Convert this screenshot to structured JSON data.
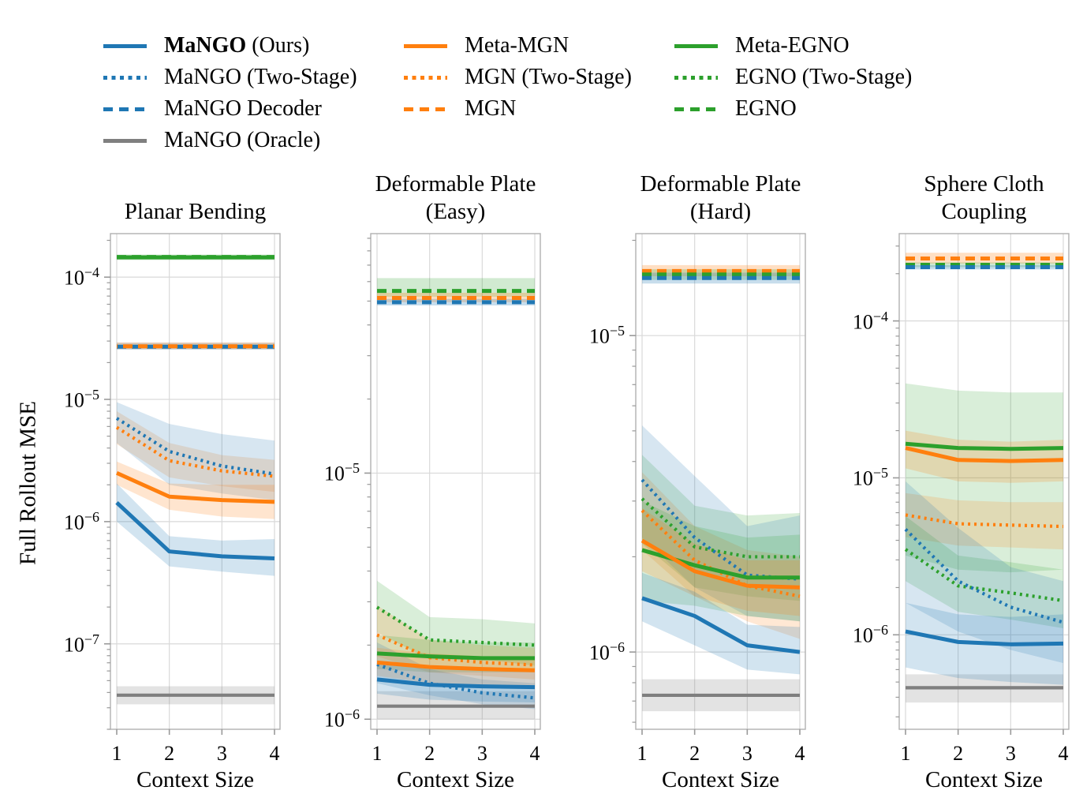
{
  "figure": {
    "ylabel": "Full Rollout MSE",
    "xlabel": "Context Size",
    "x_ticks": [
      "1",
      "2",
      "3",
      "4"
    ],
    "background": "#ffffff",
    "grid_color": "#d9d9d9",
    "spine_color": "#b0b0b0",
    "tick_color": "#9a9a9a"
  },
  "styles": {
    "mango": {
      "color": "#1f77b4",
      "dash": "solid",
      "width": 5,
      "band_opacity": 0.2
    },
    "mango_two_stage": {
      "color": "#1f77b4",
      "dash": "dotted",
      "width": 4.2,
      "band_opacity": 0.18
    },
    "mango_decoder": {
      "color": "#1f77b4",
      "dash": "dashed",
      "width": 5,
      "band_opacity": 0.25
    },
    "mango_oracle": {
      "color": "#7f7f7f",
      "dash": "solid",
      "width": 4.2,
      "band_opacity": 0.22
    },
    "meta_mgn": {
      "color": "#ff7f0e",
      "dash": "solid",
      "width": 5,
      "band_opacity": 0.2
    },
    "mgn_two_stage": {
      "color": "#ff7f0e",
      "dash": "dotted",
      "width": 4.2,
      "band_opacity": 0.18
    },
    "mgn": {
      "color": "#ff7f0e",
      "dash": "dashed",
      "width": 5,
      "band_opacity": 0.25
    },
    "meta_egno": {
      "color": "#2ca02c",
      "dash": "solid",
      "width": 5,
      "band_opacity": 0.18
    },
    "egno_two_stage": {
      "color": "#2ca02c",
      "dash": "dotted",
      "width": 4.2,
      "band_opacity": 0.18
    },
    "egno": {
      "color": "#2ca02c",
      "dash": "dashed",
      "width": 5,
      "band_opacity": 0.22
    }
  },
  "legend": {
    "columns": [
      {
        "x": 131,
        "items": [
          {
            "key": "mango",
            "bold": "MaNGO",
            "label": " (Ours)"
          },
          {
            "key": "mango_two_stage",
            "bold": "",
            "label": "MaNGO (Two-Stage)"
          },
          {
            "key": "mango_decoder",
            "bold": "",
            "label": "MaNGO Decoder"
          },
          {
            "key": "mango_oracle",
            "bold": "",
            "label": "MaNGO (Oracle)"
          }
        ]
      },
      {
        "x": 512,
        "items": [
          {
            "key": "meta_mgn",
            "bold": "",
            "label": "Meta-MGN"
          },
          {
            "key": "mgn_two_stage",
            "bold": "",
            "label": "MGN (Two-Stage)"
          },
          {
            "key": "mgn",
            "bold": "",
            "label": "MGN"
          }
        ]
      },
      {
        "x": 855,
        "items": [
          {
            "key": "meta_egno",
            "bold": "",
            "label": "Meta-EGNO"
          },
          {
            "key": "egno_two_stage",
            "bold": "",
            "label": "EGNO (Two-Stage)"
          },
          {
            "key": "egno",
            "bold": "",
            "label": "EGNO"
          }
        ]
      }
    ]
  },
  "chart_data": [
    {
      "type": "line",
      "title": "Planar Bending",
      "x": [
        1,
        2,
        3,
        4
      ],
      "ylim": [
        2e-08,
        0.000227
      ],
      "yticks": [
        -4,
        -5,
        -6,
        -7
      ],
      "series": [
        {
          "key": "mango_oracle",
          "values": [
            3.8e-08,
            3.8e-08,
            3.8e-08,
            3.8e-08
          ],
          "lo": [
            3.2e-08,
            3.2e-08,
            3.2e-08,
            3.2e-08
          ],
          "hi": [
            4.5e-08,
            4.5e-08,
            4.5e-08,
            4.5e-08
          ]
        },
        {
          "key": "meta_egno",
          "values": [
            0.000145,
            0.000145,
            0.000145,
            0.000145
          ],
          "lo": [
            0.000138,
            0.000138,
            0.000138,
            0.000138
          ],
          "hi": [
            0.000153,
            0.000153,
            0.000153,
            0.000153
          ]
        },
        {
          "key": "egno",
          "values": [
            0.000146,
            0.000146,
            0.000146,
            0.000146
          ],
          "lo": [
            0.00014,
            0.00014,
            0.00014,
            0.00014
          ],
          "hi": [
            0.000152,
            0.000152,
            0.000152,
            0.000152
          ]
        },
        {
          "key": "mango_decoder",
          "values": [
            2.7e-05,
            2.7e-05,
            2.7e-05,
            2.7e-05
          ],
          "lo": [
            2.55e-05,
            2.55e-05,
            2.55e-05,
            2.55e-05
          ],
          "hi": [
            2.9e-05,
            2.9e-05,
            2.9e-05,
            2.9e-05
          ]
        },
        {
          "key": "mgn",
          "values": [
            2.72e-05,
            2.72e-05,
            2.72e-05,
            2.72e-05
          ],
          "dashoffset": 11,
          "lo": [
            2.58e-05,
            2.58e-05,
            2.58e-05,
            2.58e-05
          ],
          "hi": [
            2.92e-05,
            2.92e-05,
            2.92e-05,
            2.92e-05
          ]
        },
        {
          "key": "mgn_two_stage",
          "values": [
            5.9e-06,
            3.15e-06,
            2.6e-06,
            2.35e-06
          ],
          "lo": [
            4.3e-06,
            2.3e-06,
            1.95e-06,
            1.75e-06
          ],
          "hi": [
            8e-06,
            4.4e-06,
            3.5e-06,
            3.2e-06
          ]
        },
        {
          "key": "mango_two_stage",
          "values": [
            7e-06,
            3.75e-06,
            2.85e-06,
            2.45e-06
          ],
          "lo": [
            4.4e-06,
            2e-06,
            1.7e-06,
            1.5e-06
          ],
          "hi": [
            9.5e-06,
            6.3e-06,
            5.2e-06,
            4.6e-06
          ]
        },
        {
          "key": "meta_mgn",
          "values": [
            2.5e-06,
            1.6e-06,
            1.5e-06,
            1.45e-06
          ],
          "lo": [
            2e-06,
            1.25e-06,
            1.1e-06,
            1.05e-06
          ],
          "hi": [
            3.1e-06,
            2.05e-06,
            2e-06,
            2e-06
          ]
        },
        {
          "key": "mango",
          "values": [
            1.43e-06,
            5.7e-07,
            5.2e-07,
            5e-07
          ],
          "lo": [
            1e-06,
            4.3e-07,
            3.9e-07,
            3.6e-07
          ],
          "hi": [
            2.05e-06,
            7.6e-07,
            7e-07,
            7.2e-07
          ]
        }
      ]
    },
    {
      "type": "line",
      "title": "Deformable Plate\n(Easy)",
      "x": [
        1,
        2,
        3,
        4
      ],
      "ylim": [
        9.1e-07,
        9.4e-05
      ],
      "yticks": [
        -5,
        -6
      ],
      "series": [
        {
          "key": "mango_oracle",
          "values": [
            1.13e-06,
            1.13e-06,
            1.13e-06,
            1.13e-06
          ],
          "lo": [
            1e-06,
            1e-06,
            1e-06,
            1e-06
          ],
          "hi": [
            1.3e-06,
            1.3e-06,
            1.3e-06,
            1.3e-06
          ]
        },
        {
          "key": "egno",
          "values": [
            5.5e-05,
            5.5e-05,
            5.5e-05,
            5.5e-05
          ],
          "lo": [
            5.2e-05,
            5.2e-05,
            5.2e-05,
            5.2e-05
          ],
          "hi": [
            6.2e-05,
            6.2e-05,
            6.2e-05,
            6.2e-05
          ]
        },
        {
          "key": "mgn",
          "values": [
            5.15e-05,
            5.15e-05,
            5.15e-05,
            5.15e-05
          ],
          "lo": [
            4.95e-05,
            4.95e-05,
            4.95e-05,
            4.95e-05
          ],
          "hi": [
            5.4e-05,
            5.4e-05,
            5.4e-05,
            5.4e-05
          ]
        },
        {
          "key": "mango_decoder",
          "values": [
            4.95e-05,
            4.95e-05,
            4.95e-05,
            4.95e-05
          ],
          "lo": [
            4.8e-05,
            4.8e-05,
            4.8e-05,
            4.8e-05
          ],
          "hi": [
            5.1e-05,
            5.1e-05,
            5.1e-05,
            5.1e-05
          ]
        },
        {
          "key": "egno_two_stage",
          "values": [
            2.85e-06,
            2.1e-06,
            2.05e-06,
            2e-06
          ],
          "lo": [
            2.25e-06,
            1.75e-06,
            1.75e-06,
            1.65e-06
          ],
          "hi": [
            3.65e-06,
            2.6e-06,
            2.55e-06,
            2.45e-06
          ]
        },
        {
          "key": "mgn_two_stage",
          "values": [
            2.2e-06,
            1.78e-06,
            1.7e-06,
            1.66e-06
          ],
          "lo": [
            1.8e-06,
            1.55e-06,
            1.5e-06,
            1.45e-06
          ],
          "hi": [
            2.9e-06,
            2.1e-06,
            2e-06,
            1.95e-06
          ]
        },
        {
          "key": "meta_egno",
          "values": [
            1.85e-06,
            1.8e-06,
            1.77e-06,
            1.77e-06
          ],
          "lo": [
            1.6e-06,
            1.55e-06,
            1.55e-06,
            1.55e-06
          ],
          "hi": [
            2.2e-06,
            2.1e-06,
            2.05e-06,
            2.05e-06
          ]
        },
        {
          "key": "mango_two_stage",
          "values": [
            1.67e-06,
            1.4e-06,
            1.28e-06,
            1.22e-06
          ],
          "lo": [
            1.4e-06,
            1.25e-06,
            1.15e-06,
            1.1e-06
          ],
          "hi": [
            2.05e-06,
            1.6e-06,
            1.45e-06,
            1.4e-06
          ]
        },
        {
          "key": "meta_mgn",
          "values": [
            1.7e-06,
            1.63e-06,
            1.6e-06,
            1.58e-06
          ],
          "lo": [
            1.5e-06,
            1.4e-06,
            1.35e-06,
            1.33e-06
          ],
          "hi": [
            1.95e-06,
            1.85e-06,
            1.8e-06,
            1.8e-06
          ]
        },
        {
          "key": "mango",
          "values": [
            1.45e-06,
            1.38e-06,
            1.36e-06,
            1.35e-06
          ],
          "lo": [
            1.27e-06,
            1.2e-06,
            1.18e-06,
            1.17e-06
          ],
          "hi": [
            1.7e-06,
            1.6e-06,
            1.58e-06,
            1.57e-06
          ]
        }
      ]
    },
    {
      "type": "line",
      "title": "Deformable Plate\n(Hard)",
      "x": [
        1,
        2,
        3,
        4
      ],
      "ylim": [
        5.7e-07,
        2.1e-05
      ],
      "yticks": [
        -5,
        -6
      ],
      "series": [
        {
          "key": "mango_oracle",
          "values": [
            7.3e-07,
            7.3e-07,
            7.3e-07,
            7.3e-07
          ],
          "lo": [
            6.5e-07,
            6.5e-07,
            6.5e-07,
            6.5e-07
          ],
          "hi": [
            8.2e-07,
            8.2e-07,
            8.2e-07,
            8.2e-07
          ]
        },
        {
          "key": "mgn",
          "values": [
            1.6e-05,
            1.6e-05,
            1.6e-05,
            1.6e-05
          ],
          "lo": [
            1.54e-05,
            1.54e-05,
            1.54e-05,
            1.54e-05
          ],
          "hi": [
            1.67e-05,
            1.67e-05,
            1.67e-05,
            1.67e-05
          ]
        },
        {
          "key": "egno",
          "values": [
            1.56e-05,
            1.56e-05,
            1.56e-05,
            1.56e-05
          ],
          "lo": [
            1.5e-05,
            1.5e-05,
            1.5e-05,
            1.5e-05
          ],
          "hi": [
            1.62e-05,
            1.62e-05,
            1.62e-05,
            1.62e-05
          ]
        },
        {
          "key": "mango_decoder",
          "values": [
            1.52e-05,
            1.52e-05,
            1.52e-05,
            1.52e-05
          ],
          "lo": [
            1.46e-05,
            1.46e-05,
            1.46e-05,
            1.46e-05
          ],
          "hi": [
            1.58e-05,
            1.58e-05,
            1.58e-05,
            1.58e-05
          ]
        },
        {
          "key": "egno_two_stage",
          "values": [
            3.05e-06,
            2.15e-06,
            2e-06,
            2e-06
          ],
          "lo": [
            2.2e-06,
            1.6e-06,
            1.5e-06,
            1.45e-06
          ],
          "hi": [
            4.2e-06,
            2.9e-06,
            2.7e-06,
            2.75e-06
          ]
        },
        {
          "key": "mgn_two_stage",
          "values": [
            2.8e-06,
            1.95e-06,
            1.62e-06,
            1.5e-06
          ],
          "lo": [
            2.1e-06,
            1.5e-06,
            1.25e-06,
            1.1e-06
          ],
          "hi": [
            3.7e-06,
            2.5e-06,
            2.1e-06,
            2e-06
          ]
        },
        {
          "key": "mango_two_stage",
          "values": [
            3.5e-06,
            2.3e-06,
            1.75e-06,
            1.7e-06
          ],
          "lo": [
            2.3e-06,
            1.6e-06,
            1.3e-06,
            1.25e-06
          ],
          "hi": [
            5.2e-06,
            3.6e-06,
            2.5e-06,
            2.7e-06
          ]
        },
        {
          "key": "meta_egno",
          "values": [
            2.1e-06,
            1.88e-06,
            1.72e-06,
            1.72e-06
          ],
          "lo": [
            1.45e-06,
            1.4e-06,
            1.3e-06,
            1.25e-06
          ],
          "hi": [
            3e-06,
            2.5e-06,
            2.3e-06,
            2.35e-06
          ]
        },
        {
          "key": "meta_mgn",
          "values": [
            2.25e-06,
            1.8e-06,
            1.62e-06,
            1.6e-06
          ],
          "lo": [
            1.8e-06,
            1.5e-06,
            1.35e-06,
            1.3e-06
          ],
          "hi": [
            2.85e-06,
            2.2e-06,
            1.95e-06,
            1.95e-06
          ]
        },
        {
          "key": "mango",
          "values": [
            1.48e-06,
            1.3e-06,
            1.05e-06,
            1e-06
          ],
          "lo": [
            1.25e-06,
            1.05e-06,
            8.8e-07,
            8.5e-07
          ],
          "hi": [
            1.78e-06,
            1.55e-06,
            1.22e-06,
            1.2e-06
          ]
        }
      ]
    },
    {
      "type": "line",
      "title": "Sphere Cloth\nCoupling",
      "x": [
        1,
        2,
        3,
        4
      ],
      "ylim": [
        2.5e-07,
        0.00036
      ],
      "yticks": [
        -4,
        -5,
        -6
      ],
      "series": [
        {
          "key": "mango_oracle",
          "values": [
            4.6e-07,
            4.6e-07,
            4.6e-07,
            4.6e-07
          ],
          "lo": [
            3.7e-07,
            3.7e-07,
            3.7e-07,
            3.7e-07
          ],
          "hi": [
            5.6e-07,
            5.6e-07,
            5.6e-07,
            5.6e-07
          ]
        },
        {
          "key": "meta_egno",
          "values": [
            1.65e-05,
            1.55e-05,
            1.53e-05,
            1.55e-05
          ],
          "lo": [
            3.2e-06,
            2.6e-06,
            2.5e-06,
            2.6e-06
          ],
          "hi": [
            4e-05,
            3.6e-05,
            3.5e-05,
            3.5e-05
          ]
        },
        {
          "key": "mgn",
          "values": [
            0.00025,
            0.00025,
            0.00025,
            0.00025
          ],
          "lo": [
            0.000232,
            0.000232,
            0.000232,
            0.000232
          ],
          "hi": [
            0.000272,
            0.000272,
            0.000272,
            0.000272
          ]
        },
        {
          "key": "egno",
          "values": [
            0.000228,
            0.000228,
            0.000228,
            0.000228
          ],
          "lo": [
            0.00022,
            0.00022,
            0.00022,
            0.00022
          ],
          "hi": [
            0.000236,
            0.000236,
            0.000236,
            0.000236
          ]
        },
        {
          "key": "mango_decoder",
          "values": [
            0.00022,
            0.00022,
            0.00022,
            0.00022
          ],
          "lo": [
            0.000213,
            0.000213,
            0.000213,
            0.000213
          ],
          "hi": [
            0.000227,
            0.000227,
            0.000227,
            0.000227
          ]
        },
        {
          "key": "mgn_two_stage",
          "values": [
            5.8e-06,
            5.1e-06,
            5e-06,
            4.9e-06
          ],
          "lo": [
            4.2e-06,
            3.7e-06,
            3.6e-06,
            3.5e-06
          ],
          "hi": [
            8e-06,
            7.2e-06,
            7e-06,
            7e-06
          ]
        },
        {
          "key": "egno_two_stage",
          "values": [
            3.5e-06,
            2.05e-06,
            1.85e-06,
            1.65e-06
          ],
          "lo": [
            2.2e-06,
            1.4e-06,
            1.25e-06,
            1.1e-06
          ],
          "hi": [
            5.7e-06,
            3.2e-06,
            2.9e-06,
            2.6e-06
          ]
        },
        {
          "key": "mango_two_stage",
          "values": [
            4.7e-06,
            2.2e-06,
            1.5e-06,
            1.2e-06
          ],
          "lo": [
            1.6e-06,
            1.05e-06,
            8e-07,
            6.6e-07
          ],
          "hi": [
            9.5e-06,
            4.8e-06,
            2.7e-06,
            2.2e-06
          ]
        },
        {
          "key": "meta_mgn",
          "values": [
            1.55e-05,
            1.3e-05,
            1.28e-05,
            1.3e-05
          ],
          "lo": [
            1.15e-05,
            9.5e-06,
            9.3e-06,
            9.5e-06
          ],
          "hi": [
            2e-05,
            1.75e-05,
            1.7e-05,
            1.75e-05
          ]
        },
        {
          "key": "mango",
          "values": [
            1.05e-06,
            9e-07,
            8.7e-07,
            8.8e-07
          ],
          "lo": [
            6.2e-07,
            5.3e-07,
            5e-07,
            4.8e-07
          ],
          "hi": [
            1.6e-06,
            1.35e-06,
            1.3e-06,
            1.35e-06
          ]
        }
      ]
    }
  ]
}
